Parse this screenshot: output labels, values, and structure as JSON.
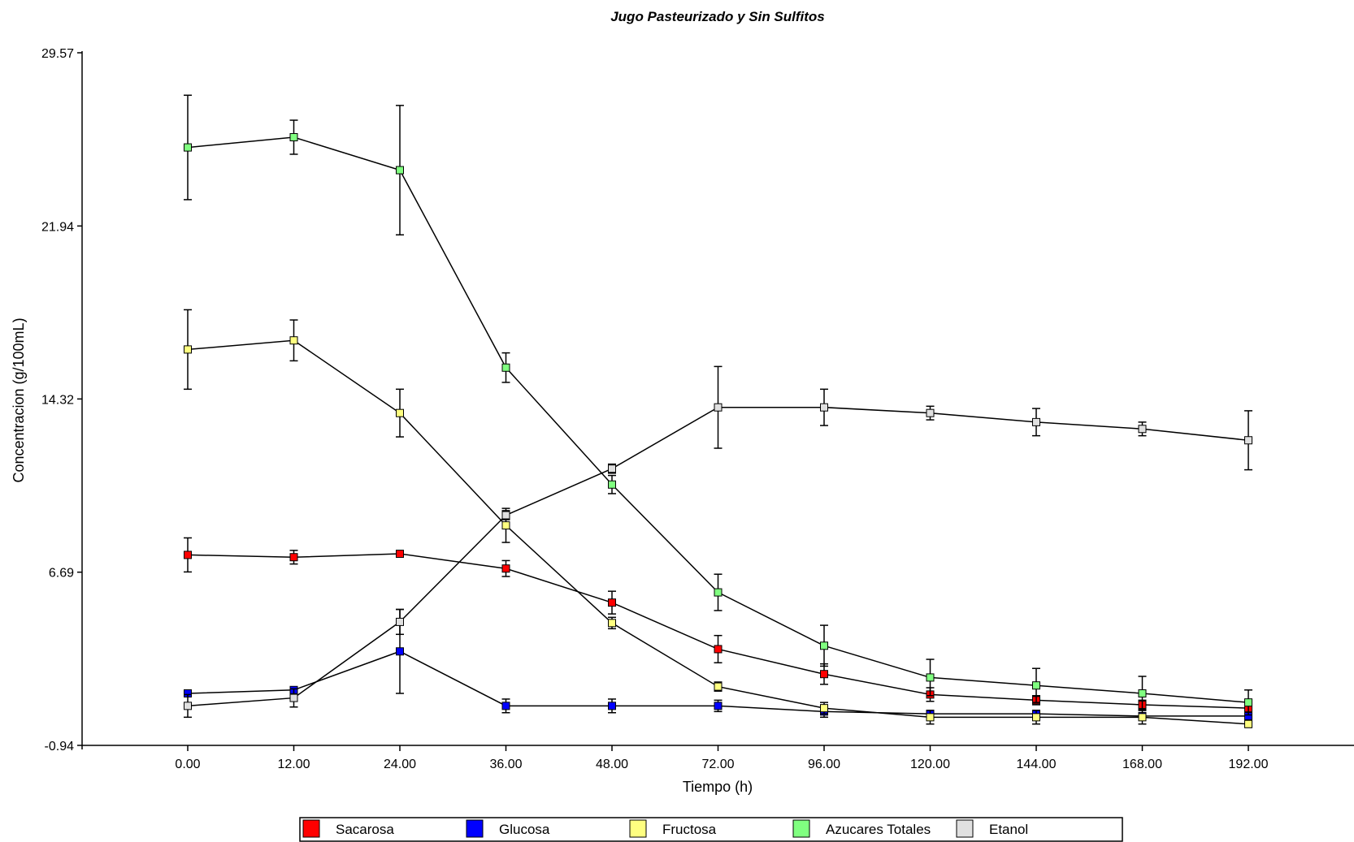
{
  "chart_data": {
    "type": "line",
    "title": "Jugo Pasteurizado y Sin Sulfitos",
    "xlabel": "Tiempo (h)",
    "ylabel": "Concentracion (g/100mL)",
    "ylim": [
      -0.94,
      29.57
    ],
    "y_ticks": [
      "29.57",
      "21.94",
      "14.32",
      "6.69",
      "-0.94"
    ],
    "categories": [
      "0.00",
      "12.00",
      "24.00",
      "36.00",
      "48.00",
      "72.00",
      "96.00",
      "120.00",
      "144.00",
      "168.00",
      "192.00"
    ],
    "legend_position": "bottom",
    "grid": false,
    "series": [
      {
        "name": "Sacarosa",
        "color": "#ff0000",
        "values": [
          7.45,
          7.35,
          7.5,
          6.85,
          5.35,
          3.3,
          2.2,
          1.3,
          1.05,
          0.85,
          0.7
        ],
        "errors": [
          0.75,
          0.3,
          0.05,
          0.35,
          0.5,
          0.6,
          0.45,
          0.3,
          0.2,
          0.2,
          0.2
        ]
      },
      {
        "name": "Glucosa",
        "color": "#0000ff",
        "values": [
          1.35,
          1.5,
          3.2,
          0.8,
          0.8,
          0.8,
          0.55,
          0.45,
          0.45,
          0.35,
          0.35
        ],
        "errors": [
          0.1,
          0.1,
          1.85,
          0.3,
          0.3,
          0.25,
          0.25,
          0.1,
          0.15,
          0.1,
          0.1
        ]
      },
      {
        "name": "Fructosa",
        "color": "#ffff80",
        "values": [
          16.5,
          16.9,
          13.7,
          8.75,
          4.45,
          1.65,
          0.7,
          0.3,
          0.3,
          0.3,
          0.0
        ],
        "errors": [
          1.75,
          0.9,
          1.05,
          0.75,
          0.25,
          0.2,
          0.25,
          0.3,
          0.3,
          0.3,
          0.15
        ]
      },
      {
        "name": "Azucares Totales",
        "color": "#80ff80",
        "values": [
          25.4,
          25.85,
          24.4,
          15.7,
          10.55,
          5.8,
          3.45,
          2.05,
          1.7,
          1.35,
          0.95
        ],
        "errors": [
          2.3,
          0.75,
          2.85,
          0.65,
          0.4,
          0.8,
          0.9,
          0.8,
          0.75,
          0.75,
          0.55
        ]
      },
      {
        "name": "Etanol",
        "color": "#e0e0e0",
        "values": [
          0.8,
          1.15,
          4.5,
          9.2,
          11.25,
          13.95,
          13.95,
          13.7,
          13.3,
          13.0,
          12.5
        ],
        "errors": [
          0.5,
          0.4,
          0.55,
          0.2,
          0.2,
          1.8,
          0.8,
          0.3,
          0.6,
          0.3,
          1.3
        ]
      }
    ]
  }
}
